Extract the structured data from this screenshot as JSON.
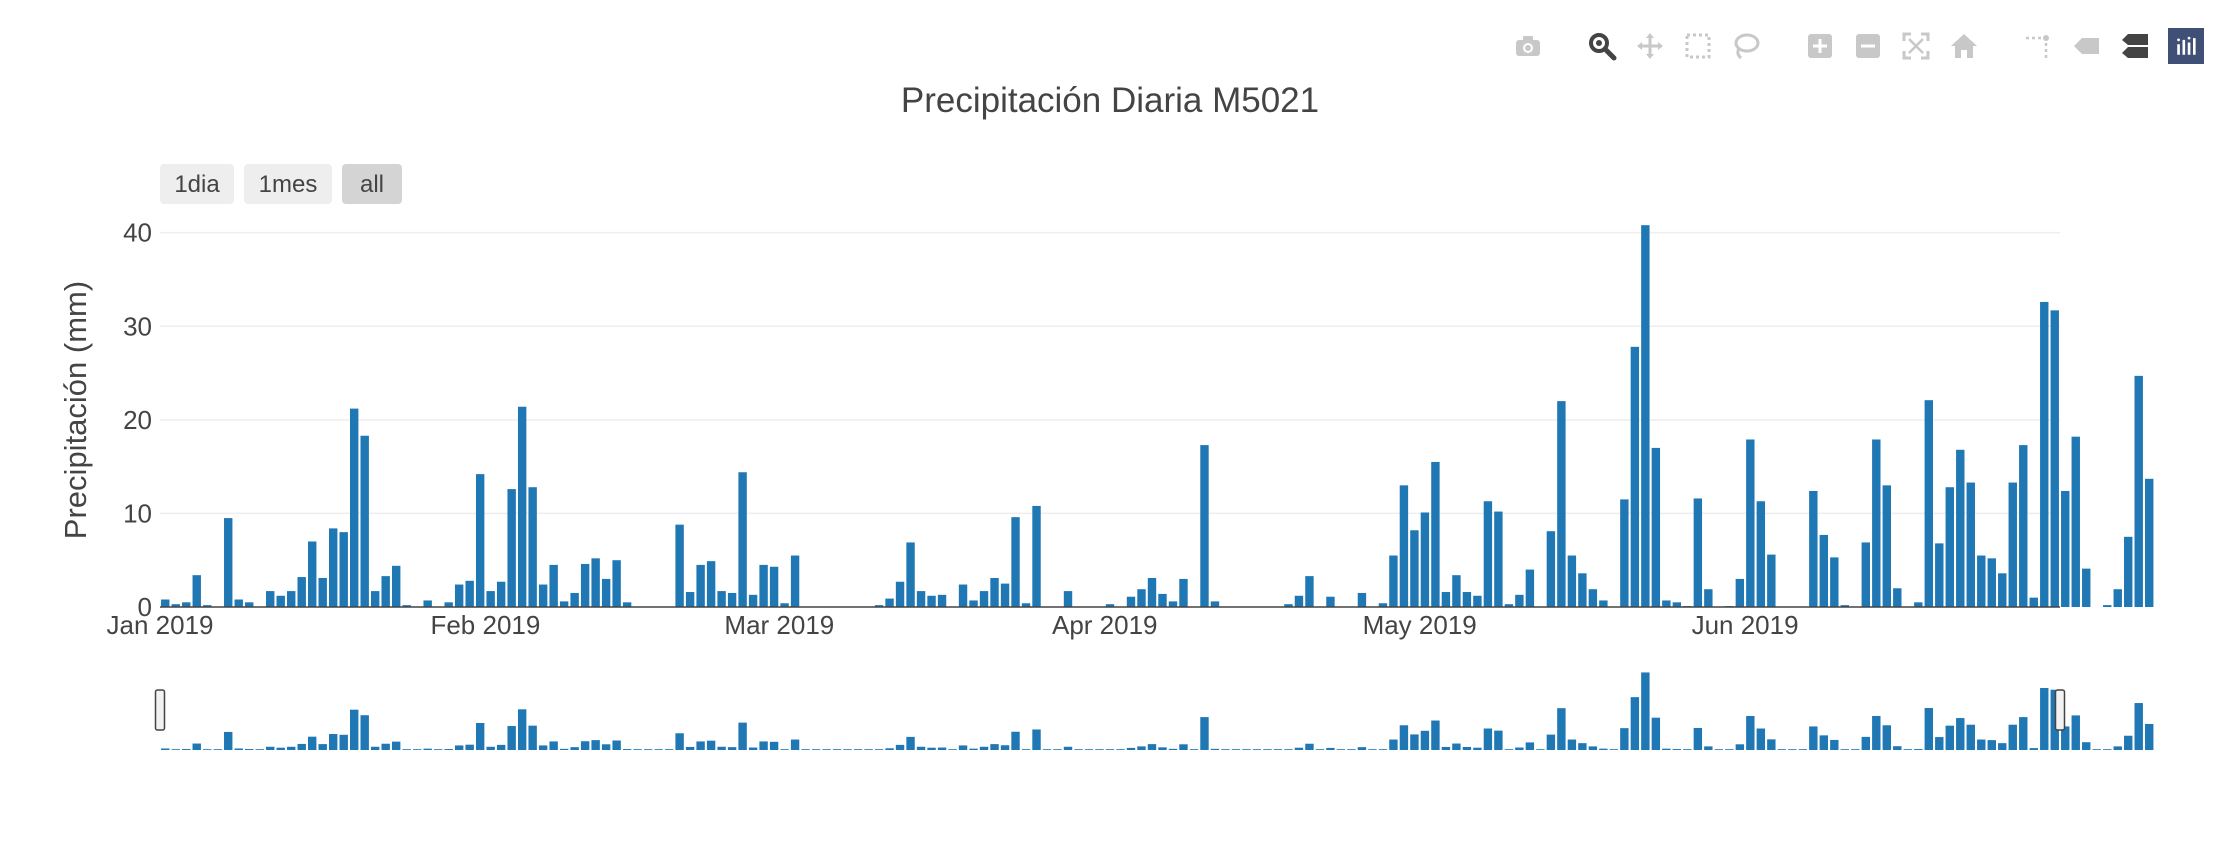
{
  "modebar": {
    "buttons": [
      {
        "name": "camera-icon",
        "group": 0,
        "active": false
      },
      {
        "name": "zoom-icon",
        "group": 1,
        "active": true
      },
      {
        "name": "pan-icon",
        "group": 1,
        "active": false
      },
      {
        "name": "box-select-icon",
        "group": 1,
        "active": false
      },
      {
        "name": "lasso-select-icon",
        "group": 1,
        "active": false
      },
      {
        "name": "zoom-in-icon",
        "group": 2,
        "active": false
      },
      {
        "name": "zoom-out-icon",
        "group": 2,
        "active": false
      },
      {
        "name": "autoscale-icon",
        "group": 2,
        "active": false
      },
      {
        "name": "reset-axes-icon",
        "group": 2,
        "active": false
      },
      {
        "name": "spike-lines-icon",
        "group": 3,
        "active": false
      },
      {
        "name": "hover-closest-icon",
        "group": 3,
        "active": false
      },
      {
        "name": "hover-compare-icon",
        "group": 3,
        "active": true
      }
    ],
    "logo": "plotly-logo-icon"
  },
  "range_selector": {
    "buttons": [
      {
        "label": "1dia",
        "active": false
      },
      {
        "label": "1mes",
        "active": false
      },
      {
        "label": "all",
        "active": true
      }
    ]
  },
  "colors": {
    "bar": "#1f77b4",
    "grid": "#eeeeee",
    "text": "#444444",
    "button_bg": "#eeeeee",
    "button_active_bg": "#d4d4d4",
    "icon_inactive": "#c8c8c8",
    "icon_active": "#444444"
  },
  "chart_data": {
    "type": "bar",
    "title": "Precipitación Diaria M5021",
    "xlabel": "",
    "ylabel": "Precipitación (mm)",
    "ylim": [
      0,
      40.5
    ],
    "yticks": [
      0,
      10,
      20,
      30,
      40
    ],
    "xlim": [
      "2019-01-01",
      "2019-06-30"
    ],
    "xticks": [
      {
        "date": "2019-01-01",
        "label": "Jan 2019"
      },
      {
        "date": "2019-02-01",
        "label": "Feb 2019"
      },
      {
        "date": "2019-03-01",
        "label": "Mar 2019"
      },
      {
        "date": "2019-04-01",
        "label": "Apr 2019"
      },
      {
        "date": "2019-05-01",
        "label": "May 2019"
      },
      {
        "date": "2019-06-01",
        "label": "Jun 2019"
      }
    ],
    "grid": true,
    "legend": false,
    "rangeslider": true,
    "series": [
      {
        "start_date": "2019-01-01",
        "values": [
          0.8,
          0.3,
          0.5,
          3.4,
          0.2,
          0,
          9.5,
          0.8,
          0.5,
          0,
          1.7,
          1.2,
          1.7,
          3.2,
          7.0,
          3.1,
          8.4,
          8.0,
          21.2,
          18.3,
          1.7,
          3.3,
          4.4,
          0.2,
          0,
          0.7,
          0,
          0.5,
          2.4,
          2.8,
          14.2,
          1.7,
          2.7,
          12.6,
          21.4,
          12.8,
          2.4,
          4.5,
          0.6,
          1.5,
          4.6,
          5.2,
          3.0,
          5.0,
          0.5,
          0,
          0,
          0,
          0,
          8.8,
          1.6,
          4.5,
          4.9,
          1.7,
          1.5,
          14.4,
          1.3,
          4.5,
          4.3,
          0.4,
          5.5,
          0,
          0,
          0,
          0,
          0,
          0,
          0,
          0.2,
          0.9,
          2.7,
          6.9,
          1.7,
          1.2,
          1.3,
          0,
          2.4,
          0.7,
          1.7,
          3.1,
          2.5,
          9.6,
          0.4,
          10.8,
          0,
          0,
          1.7,
          0,
          0,
          0,
          0.3,
          0,
          1.1,
          1.9,
          3.1,
          1.4,
          0.6,
          3.0,
          0,
          17.3,
          0.6,
          0,
          0,
          0,
          0,
          0,
          0,
          0.3,
          1.2,
          3.3,
          0,
          1.1,
          0,
          0,
          1.5,
          0,
          0.4,
          5.5,
          13.0,
          8.2,
          10.1,
          15.5,
          1.6,
          3.4,
          1.6,
          1.2,
          11.3,
          10.2,
          0.3,
          1.3,
          4.0,
          0,
          8.1,
          22.0,
          5.5,
          3.6,
          1.9,
          0.7,
          0,
          11.5,
          27.8,
          40.8,
          17.0,
          0.7,
          0.5,
          0.1,
          11.6,
          1.9,
          0,
          0.1,
          3.0,
          17.9,
          11.3,
          5.6,
          0,
          0,
          0,
          12.4,
          7.7,
          5.3,
          0.2,
          0,
          6.9,
          17.9,
          13.0,
          2.0,
          0,
          0.5,
          22.1,
          6.8,
          12.8,
          16.8,
          13.3,
          5.5,
          5.2,
          3.6,
          13.3,
          17.3,
          1.0,
          32.6,
          31.7,
          12.4,
          18.2,
          4.1,
          0,
          0.2,
          1.9,
          7.5,
          24.7,
          13.7
        ]
      }
    ]
  }
}
